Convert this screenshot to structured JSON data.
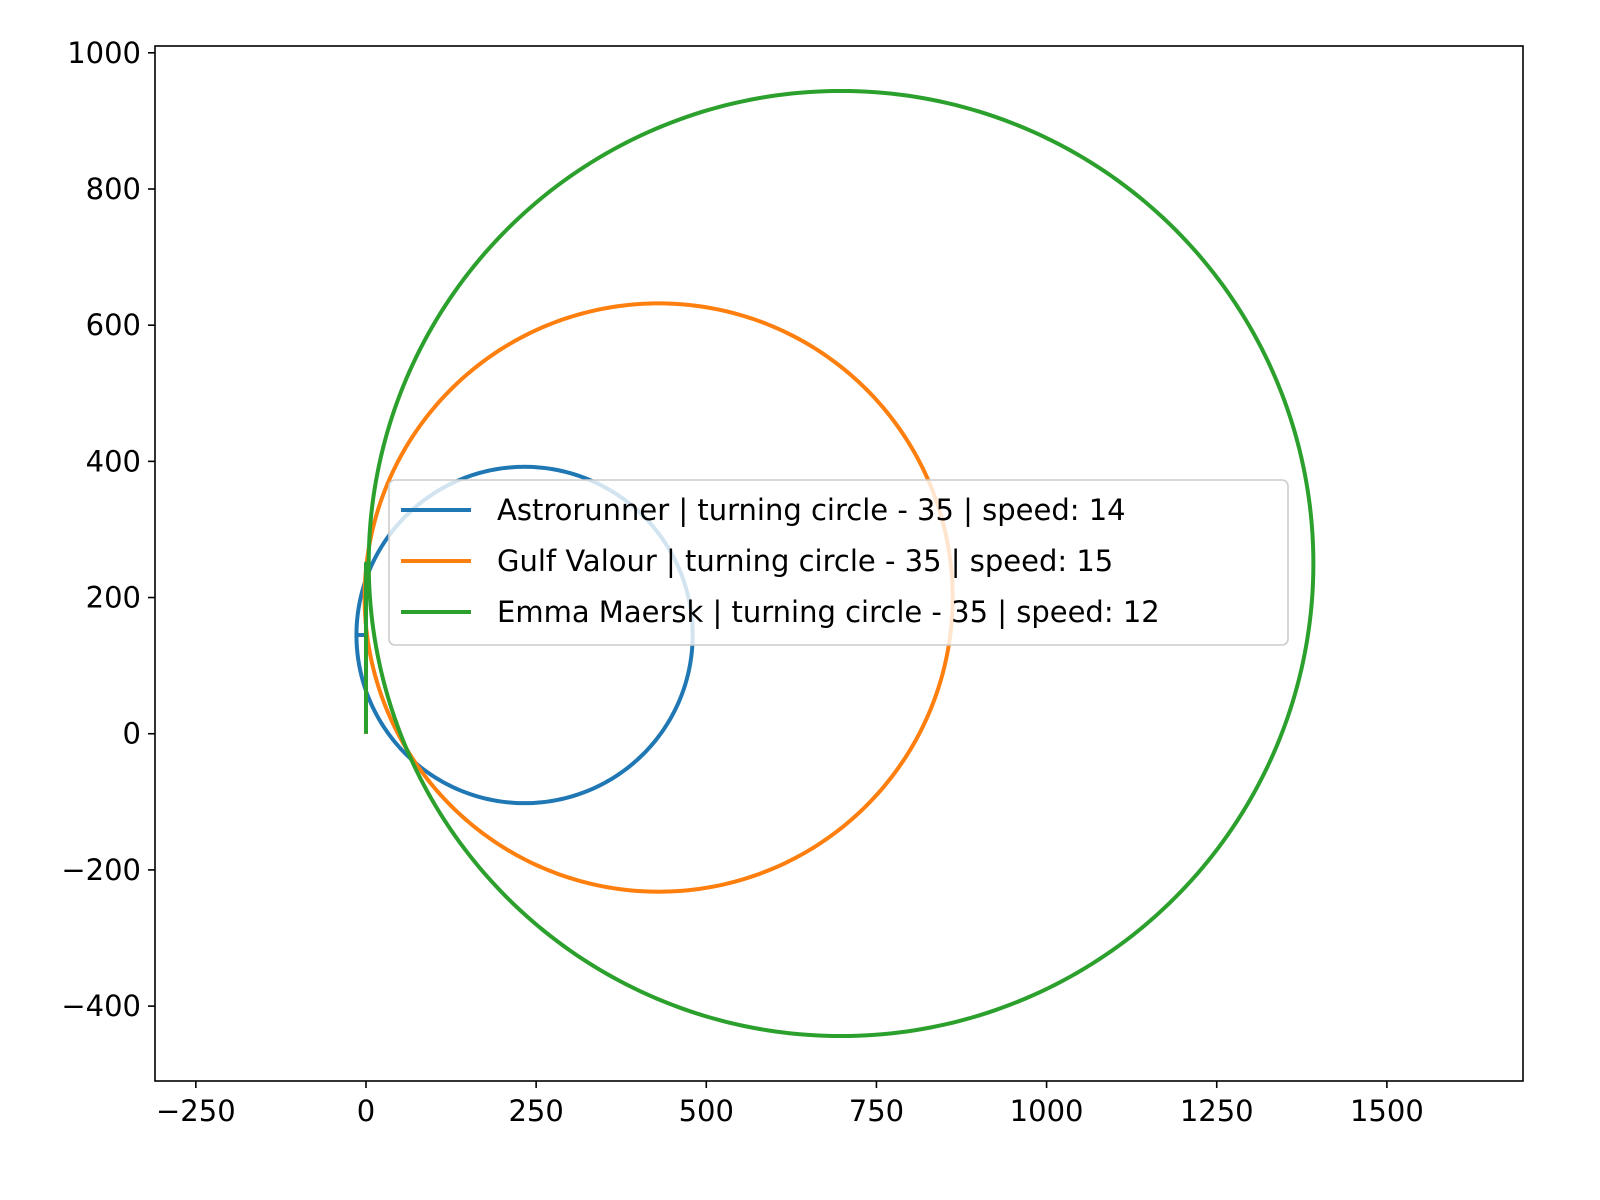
{
  "chart_data": {
    "type": "line",
    "title": "",
    "xlabel": "",
    "ylabel": "",
    "xlim": [
      -310,
      1700
    ],
    "ylim": [
      -510,
      1010
    ],
    "xticks": [
      -250,
      0,
      250,
      500,
      750,
      1000,
      1250,
      1500
    ],
    "yticks": [
      -400,
      -200,
      0,
      200,
      400,
      600,
      800,
      1000
    ],
    "xtick_labels": [
      "−250",
      "0",
      "250",
      "500",
      "750",
      "1000",
      "1250",
      "1500"
    ],
    "ytick_labels": [
      "−400",
      "−200",
      "0",
      "200",
      "400",
      "600",
      "800",
      "1000"
    ],
    "grid": false,
    "legend": "center",
    "series": [
      {
        "name": "Astrorunner | turning circle - 35 | speed: 14",
        "color": "#1f77b4",
        "path_shape": "straight run then circle",
        "start": [
          0,
          0
        ],
        "straight_to_y": 145,
        "circle_center": [
          233,
          145
        ],
        "circle_radius": 247
      },
      {
        "name": "Gulf Valour | turning circle - 35 | speed: 15",
        "color": "#ff7f0e",
        "path_shape": "straight run then circle",
        "start": [
          0,
          0
        ],
        "straight_to_y": 200,
        "circle_center": [
          430,
          200
        ],
        "circle_radius": 432
      },
      {
        "name": "Emma Maersk | turning circle - 35 | speed: 12",
        "color": "#2ca02c",
        "path_shape": "straight run then circle",
        "start": [
          0,
          0
        ],
        "straight_to_y": 250,
        "circle_center": [
          698,
          250
        ],
        "circle_radius": 694
      }
    ]
  }
}
